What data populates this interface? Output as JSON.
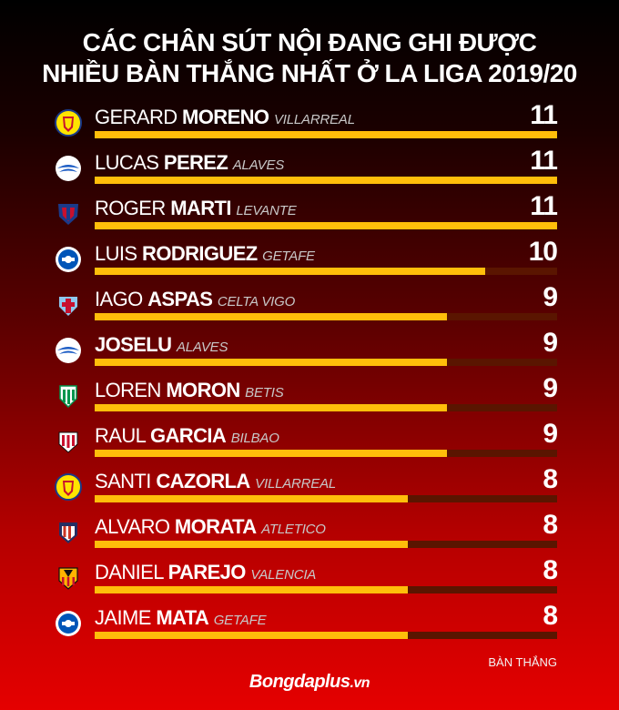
{
  "title": {
    "line1": "CÁC CHÂN SÚT NỘI ĐANG GHI ĐƯỢC",
    "line2": "NHIỀU BÀN THẮNG NHẤT Ở LA LIGA 2019/20"
  },
  "unit_label": "BÀN THẮNG",
  "brand": {
    "name": "Bongdaplus",
    "suffix": ".vn"
  },
  "colors": {
    "bar_fill": "#ffbe0a",
    "bar_track": "#5a1500"
  },
  "chart_data": {
    "type": "bar",
    "orientation": "horizontal",
    "xlim": [
      0,
      11
    ],
    "categories": [
      "GERARD MORENO",
      "LUCAS PEREZ",
      "ROGER MARTI",
      "LUIS RODRIGUEZ",
      "IAGO ASPAS",
      "JOSELU",
      "LOREN MORON",
      "RAUL GARCIA",
      "SANTI CAZORLA",
      "ALVARO MORATA",
      "DANIEL PAREJO",
      "JAIME MATA"
    ],
    "values": [
      11,
      11,
      11,
      10,
      9,
      9,
      9,
      9,
      8,
      8,
      8,
      8
    ],
    "rows": [
      {
        "first": "GERARD",
        "last": "MORENO",
        "club": "VILLARREAL",
        "value": "11",
        "icon": "villarreal-crest"
      },
      {
        "first": "LUCAS",
        "last": "PEREZ",
        "club": "ALAVES",
        "value": "11",
        "icon": "alaves-crest"
      },
      {
        "first": "ROGER",
        "last": "MARTI",
        "club": "LEVANTE",
        "value": "11",
        "icon": "levante-crest"
      },
      {
        "first": "LUIS",
        "last": "RODRIGUEZ",
        "club": "GETAFE",
        "value": "10",
        "icon": "getafe-crest"
      },
      {
        "first": "IAGO",
        "last": "ASPAS",
        "club": "CELTA VIGO",
        "value": "9",
        "icon": "celta-vigo-crest"
      },
      {
        "first": "",
        "last": "JOSELU",
        "club": "ALAVES",
        "value": "9",
        "icon": "alaves-crest"
      },
      {
        "first": "LOREN",
        "last": "MORON",
        "club": "BETIS",
        "value": "9",
        "icon": "betis-crest"
      },
      {
        "first": "RAUL",
        "last": "GARCIA",
        "club": "BILBAO",
        "value": "9",
        "icon": "bilbao-crest"
      },
      {
        "first": "SANTI",
        "last": "CAZORLA",
        "club": "VILLARREAL",
        "value": "8",
        "icon": "villarreal-crest"
      },
      {
        "first": "ALVARO",
        "last": "MORATA",
        "club": "ATLETICO",
        "value": "8",
        "icon": "atletico-crest"
      },
      {
        "first": "DANIEL",
        "last": "PAREJO",
        "club": "VALENCIA",
        "value": "8",
        "icon": "valencia-crest"
      },
      {
        "first": "JAIME",
        "last": "MATA",
        "club": "GETAFE",
        "value": "8",
        "icon": "getafe-crest"
      }
    ]
  }
}
